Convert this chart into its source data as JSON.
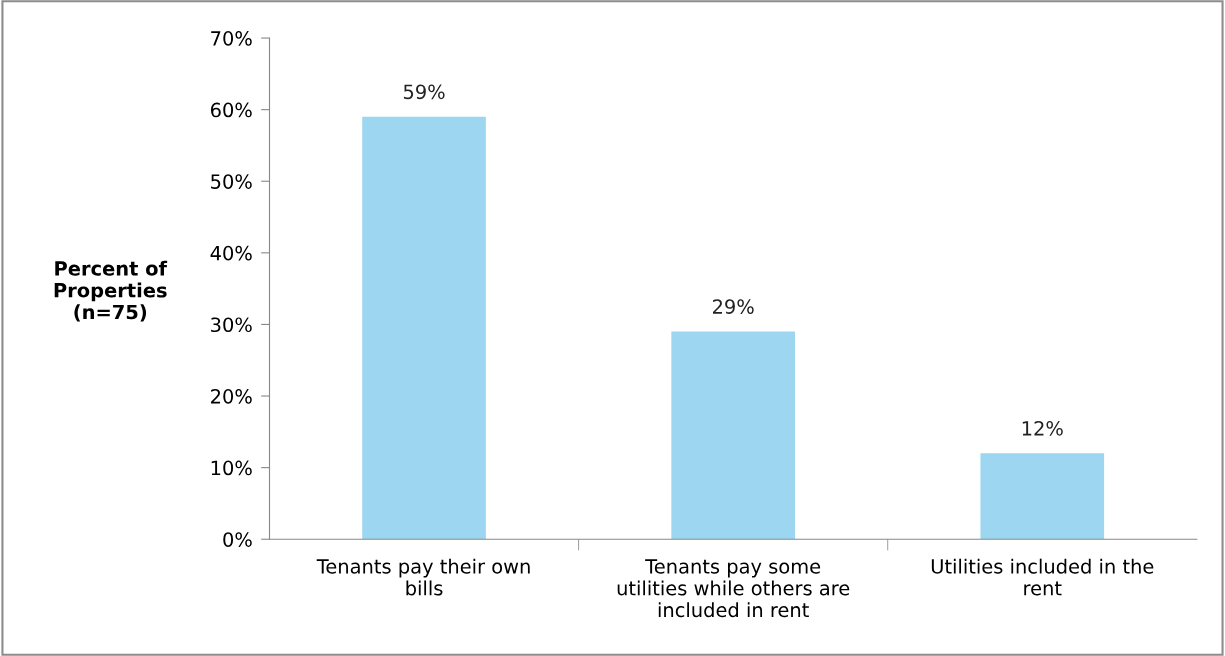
{
  "chart_data": {
    "type": "bar",
    "ylabel": "Percent of\nProperties\n(n=75)",
    "categories": [
      "Tenants pay their own\nbills",
      "Tenants pay some\nutilities while others are\nincluded in rent",
      "Utilities included in the\nrent"
    ],
    "values": [
      59,
      29,
      12
    ],
    "value_labels": [
      "59%",
      "29%",
      "12%"
    ],
    "color": "#9dd6f0",
    "ylim": [
      0,
      70
    ],
    "yticks": [
      {
        "value": 0,
        "label": "0%"
      },
      {
        "value": 10,
        "label": "10%"
      },
      {
        "value": 20,
        "label": "20%"
      },
      {
        "value": 30,
        "label": "30%"
      },
      {
        "value": 40,
        "label": "40%"
      },
      {
        "value": 50,
        "label": "50%"
      },
      {
        "value": 60,
        "label": "60%"
      },
      {
        "value": 70,
        "label": "70%"
      }
    ],
    "grid": false,
    "legend": false
  }
}
